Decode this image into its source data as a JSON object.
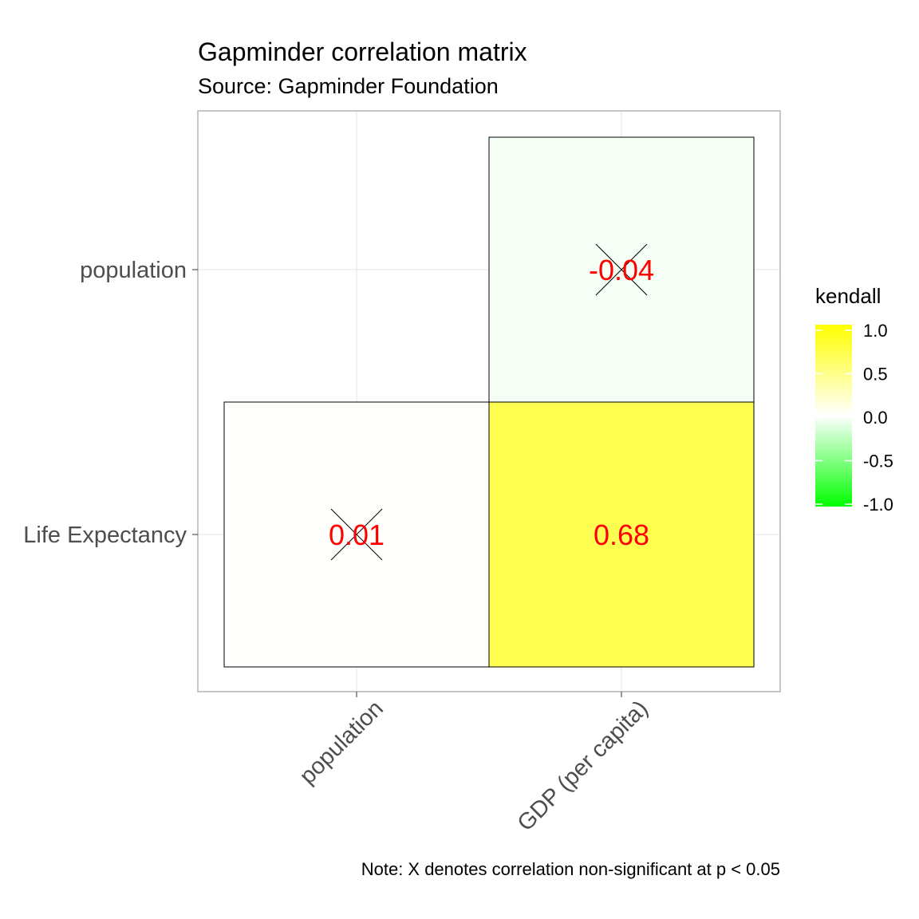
{
  "chart_data": {
    "type": "heatmap",
    "title": "Gapminder correlation matrix",
    "subtitle": "Source: Gapminder Foundation",
    "caption": "Note: X denotes correlation non-significant at p < 0.05",
    "x_categories": [
      "population",
      "GDP (per capita)"
    ],
    "y_categories": [
      "Life Expectancy",
      "population"
    ],
    "cells": [
      {
        "x": "population",
        "y": "Life Expectancy",
        "value": 0.01,
        "label": "0.01",
        "significant": false
      },
      {
        "x": "GDP (per capita)",
        "y": "Life Expectancy",
        "value": 0.68,
        "label": "0.68",
        "significant": true
      },
      {
        "x": "GDP (per capita)",
        "y": "population",
        "value": -0.04,
        "label": "-0.04",
        "significant": false
      }
    ],
    "legend": {
      "title": "kendall",
      "position": "right",
      "limits": [
        -1.0,
        1.0
      ],
      "ticks": [
        1.0,
        0.5,
        0.0,
        -0.5,
        -1.0
      ],
      "tick_labels": [
        "1.0",
        "0.5",
        "0.0",
        "-0.5",
        "-1.0"
      ]
    },
    "colors": {
      "low": "#00ff00",
      "mid": "#ffffff",
      "high": "#ffff00",
      "label": "#ff0000",
      "grid": "#e5e5e5",
      "panel_border": "#b3b3b3",
      "tile_border": "#000000"
    },
    "grid": true
  }
}
